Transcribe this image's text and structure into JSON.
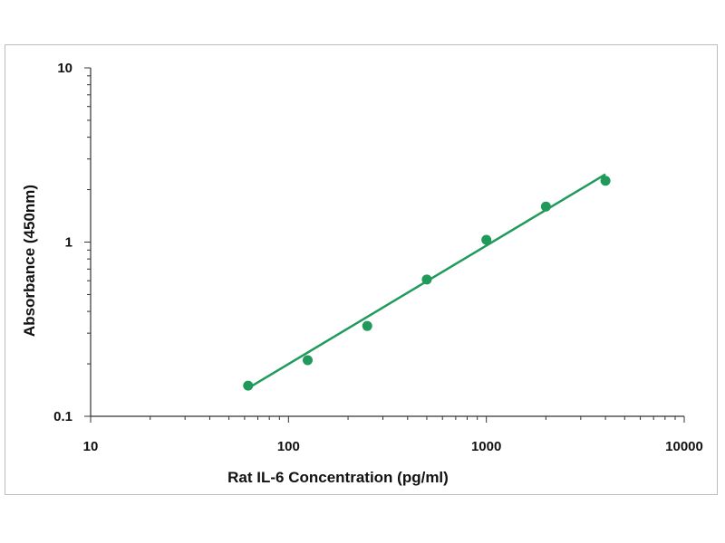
{
  "chart_data": {
    "type": "scatter",
    "title": "",
    "xlabel": "Rat IL-6 Concentration (pg/ml)",
    "ylabel": "Absorbance (450nm)",
    "x_scale": "log",
    "y_scale": "log",
    "xlim": [
      10,
      10000
    ],
    "ylim": [
      0.1,
      10
    ],
    "x_ticks": [
      "10",
      "100",
      "1000",
      "10000"
    ],
    "y_ticks": [
      "0.1",
      "1",
      "10"
    ],
    "grid": false,
    "legend": "none",
    "series": [
      {
        "x": [
          62.5,
          125,
          250,
          500,
          1000,
          2000,
          4000
        ],
        "y": [
          0.15,
          0.21,
          0.33,
          0.61,
          1.03,
          1.6,
          2.25
        ]
      }
    ],
    "fit_line": {
      "x": [
        62.5,
        4000
      ],
      "y": [
        0.145,
        2.45
      ]
    },
    "colors": {
      "marker": "#1f9a5a",
      "line": "#1f9a5a",
      "axis": "#333333"
    }
  }
}
